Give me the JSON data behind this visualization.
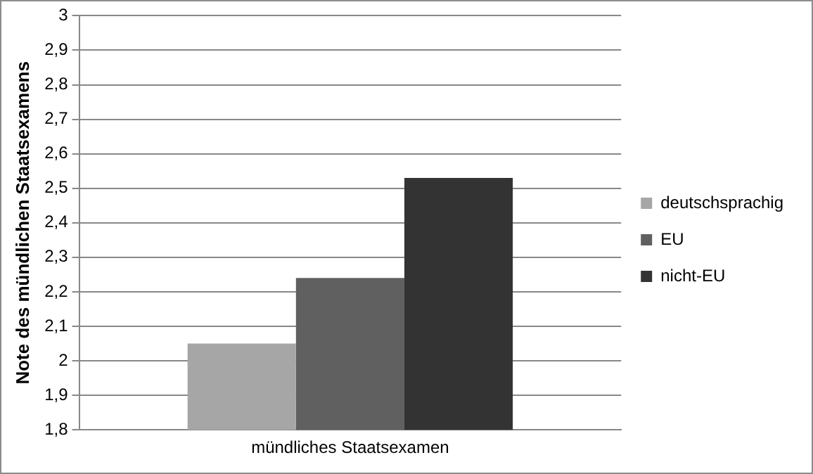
{
  "chart_data": {
    "type": "bar",
    "ylabel": "Note des mündlichen Staatsexamens",
    "categories": [
      "mündliches Staatsexamen"
    ],
    "series": [
      {
        "name": "deutschsprachig",
        "color": "#a6a6a6",
        "values": [
          2.05
        ]
      },
      {
        "name": "EU",
        "color": "#606060",
        "values": [
          2.24
        ]
      },
      {
        "name": "nicht-EU",
        "color": "#333333",
        "values": [
          2.53
        ]
      }
    ],
    "ylim": [
      1.8,
      3
    ],
    "yticks": [
      {
        "value": 1.8,
        "label": "1,8"
      },
      {
        "value": 1.9,
        "label": "1,9"
      },
      {
        "value": 2,
        "label": "2"
      },
      {
        "value": 2.1,
        "label": "2,1"
      },
      {
        "value": 2.2,
        "label": "2,2"
      },
      {
        "value": 2.3,
        "label": "2,3"
      },
      {
        "value": 2.4,
        "label": "2,4"
      },
      {
        "value": 2.5,
        "label": "2,5"
      },
      {
        "value": 2.6,
        "label": "2,6"
      },
      {
        "value": 2.7,
        "label": "2,7"
      },
      {
        "value": 2.8,
        "label": "2,8"
      },
      {
        "value": 2.9,
        "label": "2,9"
      },
      {
        "value": 3,
        "label": "3"
      }
    ],
    "grid": "y",
    "legend": "right"
  }
}
